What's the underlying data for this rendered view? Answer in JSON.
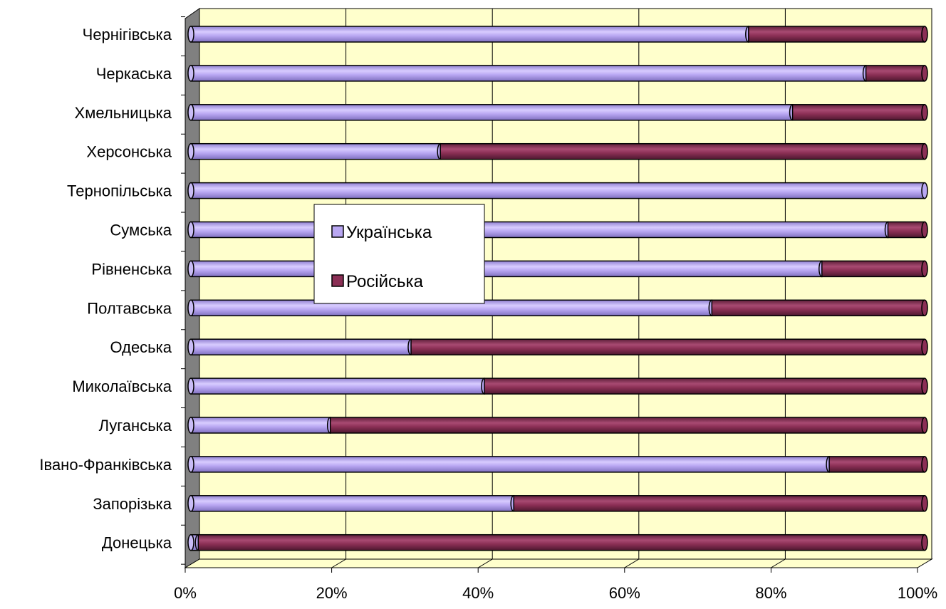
{
  "chart_data": {
    "type": "bar",
    "orientation": "horizontal",
    "stacked": "percent",
    "categories": [
      "Донецька",
      "Запорізька",
      "Івано-Франківська",
      "Луганська",
      "Миколаївська",
      "Одеська",
      "Полтавська",
      "Рівненська",
      "Сумська",
      "Тернопільська",
      "Херсонська",
      "Хмельницька",
      "Черкаська",
      "Чернігівська"
    ],
    "series": [
      {
        "name": "Українська",
        "color": "#b9a7f2",
        "values": [
          1,
          44,
          87,
          19,
          40,
          30,
          71,
          86,
          95,
          100,
          34,
          82,
          92,
          76
        ]
      },
      {
        "name": "Російська",
        "color": "#8b2f55",
        "values": [
          99,
          56,
          13,
          81,
          60,
          70,
          29,
          14,
          5,
          0,
          66,
          18,
          8,
          24
        ]
      }
    ],
    "xlim": [
      0,
      100
    ],
    "xticks": [
      "0%",
      "20%",
      "40%",
      "60%",
      "80%",
      "100%"
    ],
    "grid": true,
    "legend_position": "left-inside",
    "plot_background": "#ffffcc"
  }
}
